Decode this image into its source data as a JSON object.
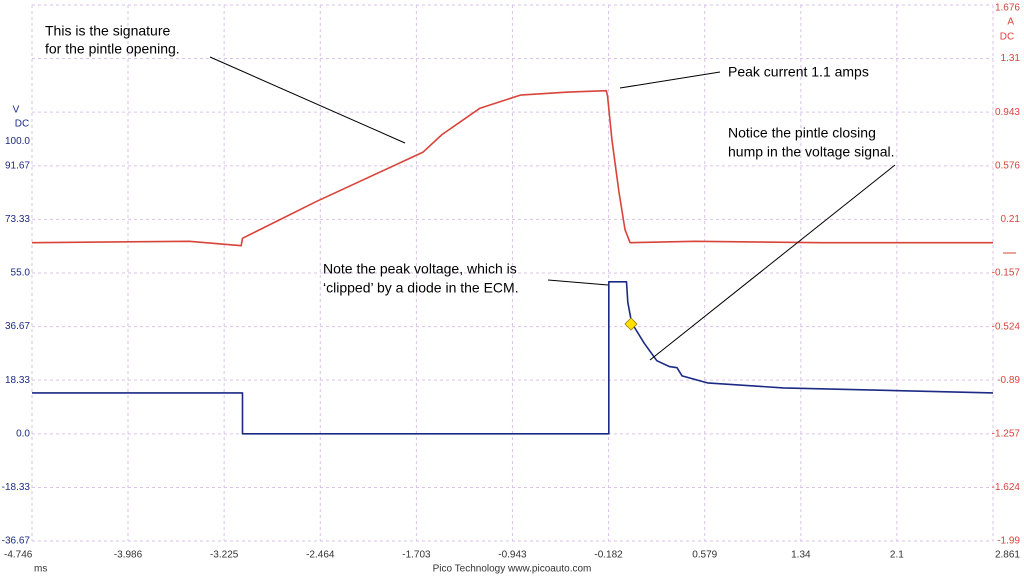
{
  "chart_data": {
    "type": "line",
    "x_label": "ms",
    "y_label": [
      "V",
      "DC"
    ],
    "y2_label": [
      "A",
      "DC"
    ],
    "footer": "Pico Technology   www.picoauto.com",
    "xlim": [
      -4.746,
      2.861
    ],
    "xticks": [
      -4.746,
      -3.986,
      -3.225,
      -2.464,
      -1.703,
      -0.943,
      -0.182,
      0.579,
      1.34,
      2.1,
      2.861
    ],
    "ylim": [
      -36.67,
      146.67
    ],
    "yticks": [
      {
        "value": 100,
        "label": "100.0"
      },
      91.67,
      73.33,
      {
        "value": 55,
        "label": "55.0"
      },
      36.67,
      18.33,
      {
        "value": 0,
        "label": "0.0"
      },
      -18.33,
      -36.67
    ],
    "y2lim": [
      -1.99,
      1.676
    ],
    "y2ticks": [
      1.676,
      1.31,
      0.943,
      0.576,
      0.21,
      -0.157,
      -0.524,
      -0.89,
      -1.257,
      -1.624,
      -1.99
    ],
    "grid": true,
    "series": [
      {
        "color": "#d9443a",
        "axis": "y2",
        "x": [
          -4.746,
          -3.5,
          -3.09,
          -3.08,
          -2.5,
          -1.65,
          -1.5,
          -1.2,
          -0.88,
          -0.5,
          -0.2,
          -0.19,
          -0.155,
          -0.1,
          -0.052,
          -0.012,
          0.5,
          1.5,
          2.861
        ],
        "values": [
          0.05,
          0.06,
          0.03,
          0.08,
          0.33,
          0.67,
          0.79,
          0.97,
          1.06,
          1.08,
          1.09,
          1.05,
          0.75,
          0.4,
          0.14,
          0.05,
          0.06,
          0.05,
          0.05
        ]
      },
      {
        "color": "#1c2a84",
        "axis": "y",
        "x": [
          -4.746,
          -3.08,
          -3.08,
          -0.18,
          -0.18,
          -0.04,
          -0.03,
          0.0,
          0.1,
          0.2,
          0.3,
          0.36,
          0.4,
          0.6,
          1.2,
          2.861
        ],
        "values": [
          14,
          14,
          0,
          0,
          52,
          52,
          45,
          38,
          31,
          25,
          23,
          22.6,
          19.8,
          17.4,
          15.7,
          14
        ]
      }
    ],
    "annotations": [
      {
        "lines": [
          "This is the signature",
          "for the pintle opening."
        ]
      },
      {
        "lines": [
          "Peak current 1.1 amps"
        ]
      },
      {
        "lines": [
          "Notice the pintle closing",
          "hump in the voltage signal."
        ]
      },
      {
        "lines": [
          "Note the peak voltage, which is",
          "‘clipped’ by a diode in the ECM."
        ]
      }
    ]
  }
}
